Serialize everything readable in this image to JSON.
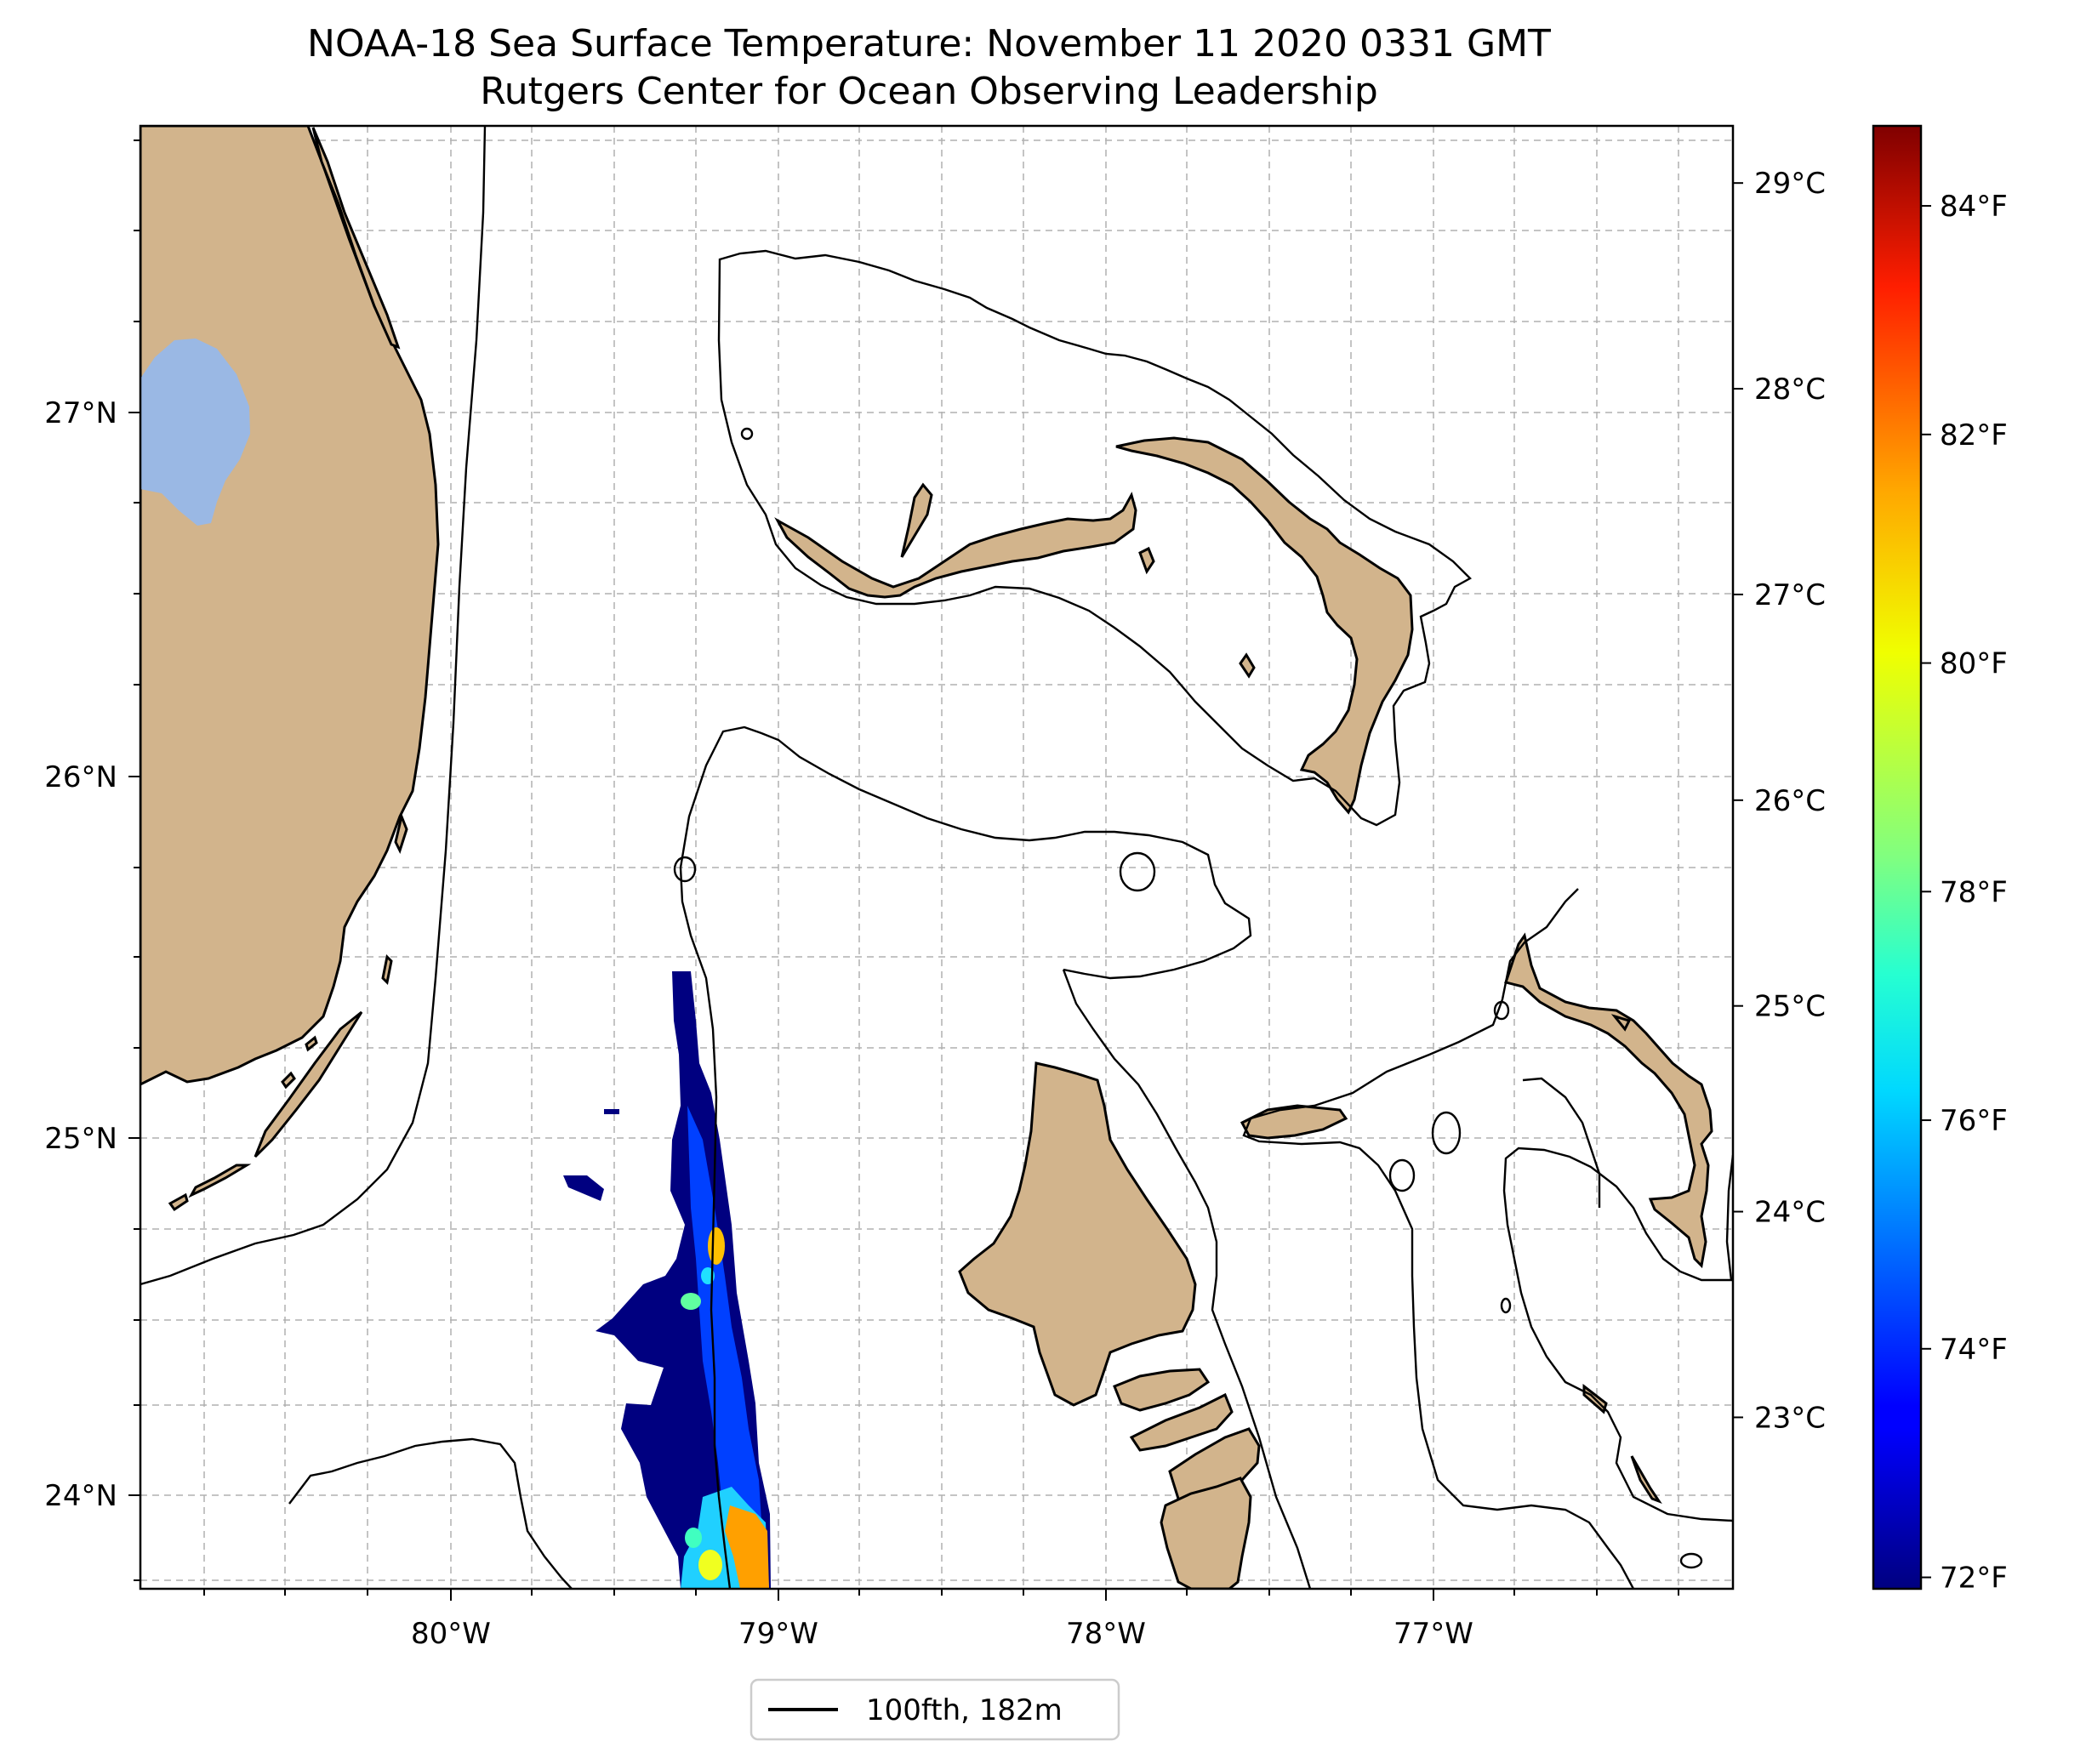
{
  "title": {
    "line1": "NOAA-18 Sea Surface Temperature: November 11 2020 0331 GMT",
    "line2": "Rutgers Center for Ocean Observing Leadership"
  },
  "map": {
    "lon_range": [
      -80.96,
      -76.1
    ],
    "lat_range": [
      23.75,
      27.8
    ],
    "lon_ticks": [
      {
        "value": -80,
        "label": "80°W"
      },
      {
        "value": -79,
        "label": "79°W"
      },
      {
        "value": -78,
        "label": "78°W"
      },
      {
        "value": -77,
        "label": "77°W"
      }
    ],
    "lat_ticks": [
      {
        "value": 24,
        "label": "24°N"
      },
      {
        "value": 25,
        "label": "25°N"
      },
      {
        "value": 26,
        "label": "26°N"
      },
      {
        "value": 27,
        "label": "27°N"
      }
    ],
    "gridlines": "dashed, every 0.25°",
    "land_color": "#d2b48c",
    "lake_color": "#9ab8e4"
  },
  "colorbar": {
    "colormap": "jet",
    "range_f": [
      71.9,
      84.7
    ],
    "celsius_ticks": [
      {
        "value": 23,
        "label": "23°C"
      },
      {
        "value": 24,
        "label": "24°C"
      },
      {
        "value": 25,
        "label": "25°C"
      },
      {
        "value": 26,
        "label": "26°C"
      },
      {
        "value": 27,
        "label": "27°C"
      },
      {
        "value": 28,
        "label": "28°C"
      },
      {
        "value": 29,
        "label": "29°C"
      }
    ],
    "fahrenheit_ticks": [
      {
        "value": 72,
        "label": "72°F"
      },
      {
        "value": 74,
        "label": "74°F"
      },
      {
        "value": 76,
        "label": "76°F"
      },
      {
        "value": 78,
        "label": "78°F"
      },
      {
        "value": 80,
        "label": "80°F"
      },
      {
        "value": 82,
        "label": "82°F"
      },
      {
        "value": 84,
        "label": "84°F"
      }
    ]
  },
  "legend": {
    "label": "100fth, 182m"
  }
}
